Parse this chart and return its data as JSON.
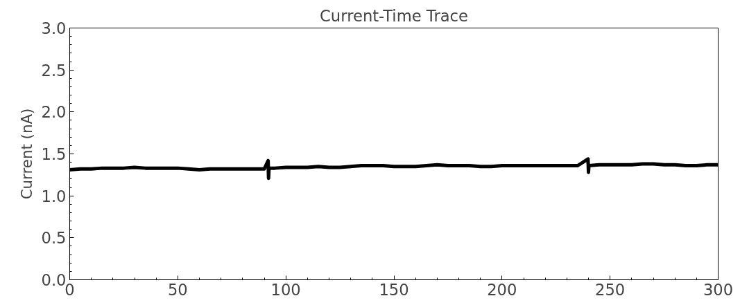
{
  "chart_data": {
    "type": "line",
    "title": "Current-Time Trace",
    "ylabel": "Current (nA)",
    "series": [
      {
        "color": "#000000",
        "x": [
          0,
          5,
          10,
          15,
          20,
          25,
          30,
          35,
          40,
          45,
          50,
          55,
          60,
          65,
          70,
          75,
          80,
          85,
          90,
          91.8,
          92,
          92.2,
          95,
          100,
          105,
          110,
          115,
          120,
          125,
          130,
          135,
          140,
          145,
          150,
          155,
          160,
          165,
          170,
          175,
          180,
          185,
          190,
          195,
          200,
          205,
          210,
          215,
          220,
          225,
          230,
          235,
          239.8,
          240,
          240.2,
          245,
          250,
          255,
          260,
          265,
          270,
          275,
          280,
          285,
          290,
          295,
          300
        ],
        "values": [
          1.31,
          1.32,
          1.32,
          1.33,
          1.33,
          1.33,
          1.34,
          1.33,
          1.33,
          1.33,
          1.33,
          1.32,
          1.31,
          1.32,
          1.32,
          1.32,
          1.32,
          1.32,
          1.32,
          1.42,
          1.21,
          1.33,
          1.33,
          1.34,
          1.34,
          1.34,
          1.35,
          1.34,
          1.34,
          1.35,
          1.36,
          1.36,
          1.36,
          1.35,
          1.35,
          1.35,
          1.36,
          1.37,
          1.36,
          1.36,
          1.36,
          1.35,
          1.35,
          1.36,
          1.36,
          1.36,
          1.36,
          1.36,
          1.36,
          1.36,
          1.36,
          1.44,
          1.28,
          1.36,
          1.37,
          1.37,
          1.37,
          1.37,
          1.38,
          1.38,
          1.37,
          1.37,
          1.36,
          1.36,
          1.37,
          1.37
        ]
      }
    ],
    "xlim": [
      0,
      300
    ],
    "xticks": [
      0,
      50,
      100,
      150,
      200,
      250,
      300
    ],
    "ylim": [
      0,
      3
    ],
    "yticks": [
      {
        "value": 0,
        "label": "0.0"
      },
      0.5,
      {
        "value": 1,
        "label": "1.0"
      },
      1.5,
      {
        "value": 2,
        "label": "2.0"
      },
      2.5,
      {
        "value": 3,
        "label": "3.0"
      }
    ],
    "grid": false,
    "marker": "none",
    "line_style": "solid"
  }
}
